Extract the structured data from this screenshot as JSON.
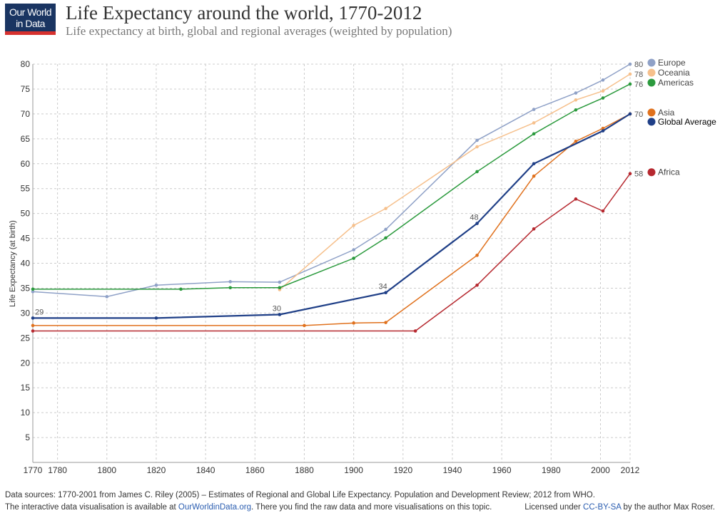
{
  "logo": "Our World in Data",
  "footer": {
    "sources": "Data sources: 1770-2001 from James C. Riley (2005) – Estimates of Regional and Global Life Expectancy. Population and Development Review; 2012 from WHO.",
    "line2": [
      "The interactive data visualisation is available at ",
      "OurWorldinData.org",
      ". There you find the raw data and more visualisations on this topic."
    ],
    "license": [
      "Licensed under ",
      "CC-BY-SA",
      " by the author Max Roser."
    ]
  },
  "chart_data": {
    "type": "line",
    "title": "Life Expectancy around the world, 1770-2012",
    "subtitle": "Life expectancy at birth, global and regional averages (weighted by population)",
    "y_label": "Life Expectancy (at birth)",
    "xlim": [
      1770,
      2012
    ],
    "xticks": [
      1770,
      1780,
      1800,
      1820,
      1840,
      1860,
      1880,
      1900,
      1920,
      1940,
      1960,
      1980,
      2000,
      2012
    ],
    "ylim": [
      0,
      80
    ],
    "yticks": [
      5,
      10,
      15,
      20,
      25,
      30,
      35,
      40,
      45,
      50,
      55,
      60,
      65,
      70,
      75,
      80
    ],
    "grid": true,
    "legend": "right",
    "series": [
      {
        "name": "Europe",
        "color": "#8fa1c7",
        "x": [
          1770,
          1800,
          1820,
          1850,
          1870,
          1900,
          1913,
          1950,
          1973,
          1990,
          2001,
          2012
        ],
        "values": [
          34.3,
          33.3,
          35.6,
          36.3,
          36.2,
          42.7,
          46.8,
          64.7,
          70.9,
          74.2,
          76.8,
          80
        ],
        "value_labels": [
          null,
          null,
          null,
          null,
          null,
          null,
          null,
          null,
          null,
          null,
          null,
          "80"
        ]
      },
      {
        "name": "Oceania",
        "color": "#f6c08c",
        "x": [
          1870,
          1900,
          1913,
          1950,
          1973,
          1990,
          2001,
          2012
        ],
        "values": [
          34.7,
          47.6,
          51,
          63.4,
          68.2,
          72.8,
          74.6,
          78
        ],
        "value_labels": [
          null,
          null,
          null,
          null,
          null,
          null,
          null,
          "78"
        ]
      },
      {
        "name": "Americas",
        "color": "#2b9a3d",
        "x": [
          1770,
          1830,
          1850,
          1870,
          1900,
          1913,
          1950,
          1973,
          1990,
          2001,
          2012
        ],
        "values": [
          34.8,
          34.8,
          35.1,
          35.1,
          41,
          45.1,
          58.4,
          66,
          70.8,
          73.2,
          76
        ],
        "value_labels": [
          null,
          null,
          null,
          null,
          null,
          null,
          null,
          null,
          null,
          null,
          "76"
        ]
      },
      {
        "name": "Asia",
        "color": "#e0711d",
        "x": [
          1770,
          1880,
          1900,
          1913,
          1950,
          1973,
          1990,
          2001,
          2012
        ],
        "values": [
          27.5,
          27.5,
          28,
          28.1,
          41.6,
          57.5,
          64.5,
          67.1,
          70
        ],
        "value_labels": [
          null,
          null,
          null,
          null,
          null,
          null,
          null,
          null,
          null
        ]
      },
      {
        "name": "Global Average",
        "color": "#1f3f87",
        "x": [
          1770,
          1820,
          1870,
          1913,
          1950,
          1973,
          2001,
          2012
        ],
        "values": [
          29,
          29,
          29.7,
          34.1,
          48,
          60,
          66.6,
          70
        ],
        "value_labels": [
          "29",
          null,
          "30",
          "34",
          "48",
          null,
          null,
          "70"
        ]
      },
      {
        "name": "Africa",
        "color": "#b6282f",
        "x": [
          1770,
          1925,
          1950,
          1973,
          1990,
          2001,
          2012
        ],
        "values": [
          26.4,
          26.4,
          35.6,
          46.9,
          52.9,
          50.5,
          58
        ],
        "value_labels": [
          null,
          null,
          null,
          null,
          null,
          null,
          "58"
        ]
      }
    ]
  }
}
